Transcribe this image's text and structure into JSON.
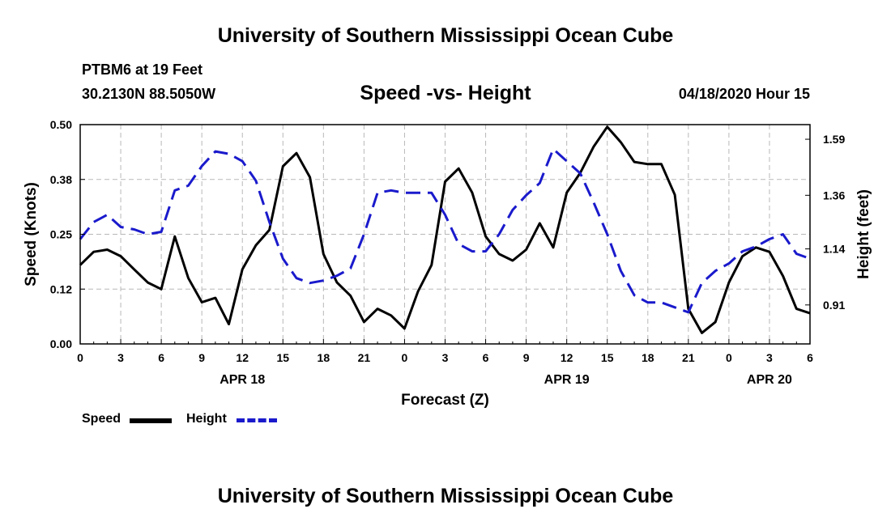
{
  "header": {
    "title": "University of Southern Mississippi Ocean Cube",
    "station_name": "PTBM6 at 19 Feet",
    "station_coords": "30.2130N 88.5050W",
    "chart_title": "Speed -vs- Height",
    "timestamp": "04/18/2020 Hour 15"
  },
  "footer": {
    "title": "University of Southern Mississippi Ocean Cube"
  },
  "legend": {
    "speed_label": "Speed",
    "height_label": "Height"
  },
  "colors": {
    "speed": "#000000",
    "height": "#1a1acc",
    "grid": "#b8b8b8"
  },
  "chart_data": {
    "type": "line",
    "title": "Speed -vs- Height",
    "xlabel": "Forecast (Z)",
    "ylabel": "Speed (Knots)",
    "y2label": "Height (feet)",
    "xlim": [
      0,
      54
    ],
    "ylim": [
      0,
      0.5
    ],
    "y2lim": [
      0.75,
      1.65
    ],
    "x_ticks": [
      0,
      3,
      6,
      9,
      12,
      15,
      18,
      21,
      24,
      27,
      30,
      33,
      36,
      39,
      42,
      45,
      48,
      51,
      54
    ],
    "x_tick_labels": [
      "0",
      "3",
      "6",
      "9",
      "12",
      "15",
      "18",
      "21",
      "0",
      "3",
      "6",
      "9",
      "12",
      "15",
      "18",
      "21",
      "0",
      "3",
      "6"
    ],
    "date_labels": [
      {
        "x": 12,
        "label": "APR 18"
      },
      {
        "x": 36,
        "label": "APR 19"
      },
      {
        "x": 51,
        "label": "APR 20"
      }
    ],
    "y_ticks": [
      0,
      0.125,
      0.25,
      0.375,
      0.5
    ],
    "y_tick_labels": [
      "0.00",
      "0.12",
      "0.25",
      "0.38",
      "0.50"
    ],
    "y2_ticks": [
      0.91,
      1.14,
      1.36,
      1.59
    ],
    "y2_tick_labels": [
      "0.91",
      "1.14",
      "1.36",
      "1.59"
    ],
    "grid": true,
    "series": [
      {
        "name": "Speed",
        "axis": "left",
        "style": "solid",
        "x": [
          0,
          1,
          2,
          3,
          4,
          5,
          6,
          7,
          8,
          9,
          10,
          11,
          12,
          13,
          14,
          15,
          16,
          17,
          18,
          19,
          20,
          21,
          22,
          23,
          24,
          25,
          26,
          27,
          28,
          29,
          30,
          31,
          32,
          33,
          34,
          35,
          36,
          37,
          38,
          39,
          40,
          41,
          42,
          43,
          44,
          45,
          46,
          47,
          48,
          49,
          50,
          51,
          52,
          53,
          54
        ],
        "values": [
          0.18,
          0.21,
          0.215,
          0.2,
          0.17,
          0.14,
          0.125,
          0.245,
          0.15,
          0.095,
          0.105,
          0.045,
          0.17,
          0.225,
          0.26,
          0.405,
          0.435,
          0.38,
          0.205,
          0.14,
          0.11,
          0.05,
          0.08,
          0.065,
          0.035,
          0.12,
          0.18,
          0.37,
          0.4,
          0.345,
          0.245,
          0.205,
          0.19,
          0.215,
          0.275,
          0.22,
          0.345,
          0.39,
          0.45,
          0.495,
          0.46,
          0.415,
          0.41,
          0.41,
          0.34,
          0.08,
          0.025,
          0.05,
          0.14,
          0.2,
          0.22,
          0.21,
          0.155,
          0.08,
          0.07
        ]
      },
      {
        "name": "Height",
        "axis": "right",
        "style": "dashed",
        "x": [
          0,
          1,
          2,
          3,
          4,
          5,
          6,
          7,
          8,
          9,
          10,
          11,
          12,
          13,
          14,
          15,
          16,
          17,
          18,
          19,
          20,
          21,
          22,
          23,
          24,
          25,
          26,
          27,
          28,
          29,
          30,
          31,
          32,
          33,
          34,
          35,
          36,
          37,
          38,
          39,
          40,
          41,
          42,
          43,
          44,
          45,
          46,
          47,
          48,
          49,
          50,
          51,
          52,
          53,
          54
        ],
        "values": [
          1.18,
          1.25,
          1.28,
          1.23,
          1.22,
          1.2,
          1.21,
          1.38,
          1.4,
          1.48,
          1.54,
          1.53,
          1.5,
          1.42,
          1.25,
          1.1,
          1.02,
          1.0,
          1.01,
          1.03,
          1.06,
          1.2,
          1.37,
          1.38,
          1.37,
          1.37,
          1.37,
          1.28,
          1.16,
          1.13,
          1.13,
          1.2,
          1.3,
          1.36,
          1.41,
          1.55,
          1.5,
          1.45,
          1.33,
          1.2,
          1.05,
          0.95,
          0.92,
          0.92,
          0.9,
          0.88,
          1.0,
          1.05,
          1.08,
          1.13,
          1.15,
          1.18,
          1.2,
          1.12,
          1.1
        ]
      }
    ]
  }
}
